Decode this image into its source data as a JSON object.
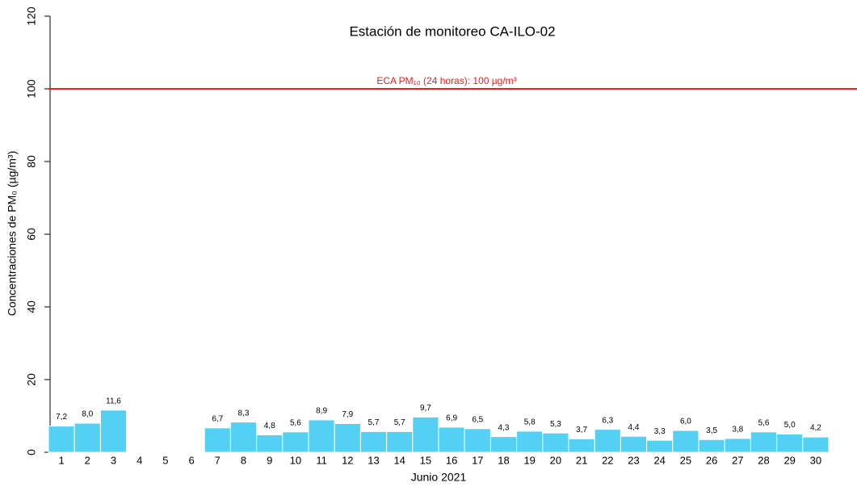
{
  "chart_data": {
    "type": "bar",
    "title": "Estación de monitoreo  CA-ILO-02",
    "x_label": "Junio 2021",
    "y_label": "Concentraciones de PM₀ (µg/m³)",
    "categories": [
      "1",
      "2",
      "3",
      "4",
      "5",
      "6",
      "7",
      "8",
      "9",
      "10",
      "11",
      "12",
      "13",
      "14",
      "15",
      "16",
      "17",
      "18",
      "19",
      "20",
      "21",
      "22",
      "23",
      "24",
      "25",
      "26",
      "27",
      "28",
      "29",
      "30"
    ],
    "values": [
      7.2,
      8.0,
      11.6,
      null,
      null,
      null,
      6.7,
      8.3,
      4.8,
      5.6,
      8.9,
      7.9,
      5.7,
      5.7,
      9.7,
      6.9,
      6.5,
      4.3,
      5.8,
      5.3,
      3.7,
      6.3,
      4.4,
      3.3,
      6.0,
      3.5,
      3.8,
      5.6,
      5.0,
      4.2
    ],
    "value_labels": [
      "7,2",
      "8,0",
      "11,6",
      null,
      null,
      null,
      "6,7",
      "8,3",
      "4,8",
      "5,6",
      "8,9",
      "7,9",
      "5,7",
      "5,7",
      "9,7",
      "6,9",
      "6,5",
      "4,3",
      "5,8",
      "5,3",
      "3,7",
      "6,3",
      "4,4",
      "3,3",
      "6,0",
      "3,5",
      "3,8",
      "5,6",
      "5,0",
      "4,2"
    ],
    "color": "#55d0f5",
    "ylim": [
      0,
      120
    ],
    "yticks": [
      0,
      20,
      40,
      60,
      80,
      100,
      120
    ],
    "reference_line": {
      "value": 100,
      "label": "ECA PM₁₀ (24 horas): 100 µg/m³",
      "color": "#e8201c"
    }
  }
}
